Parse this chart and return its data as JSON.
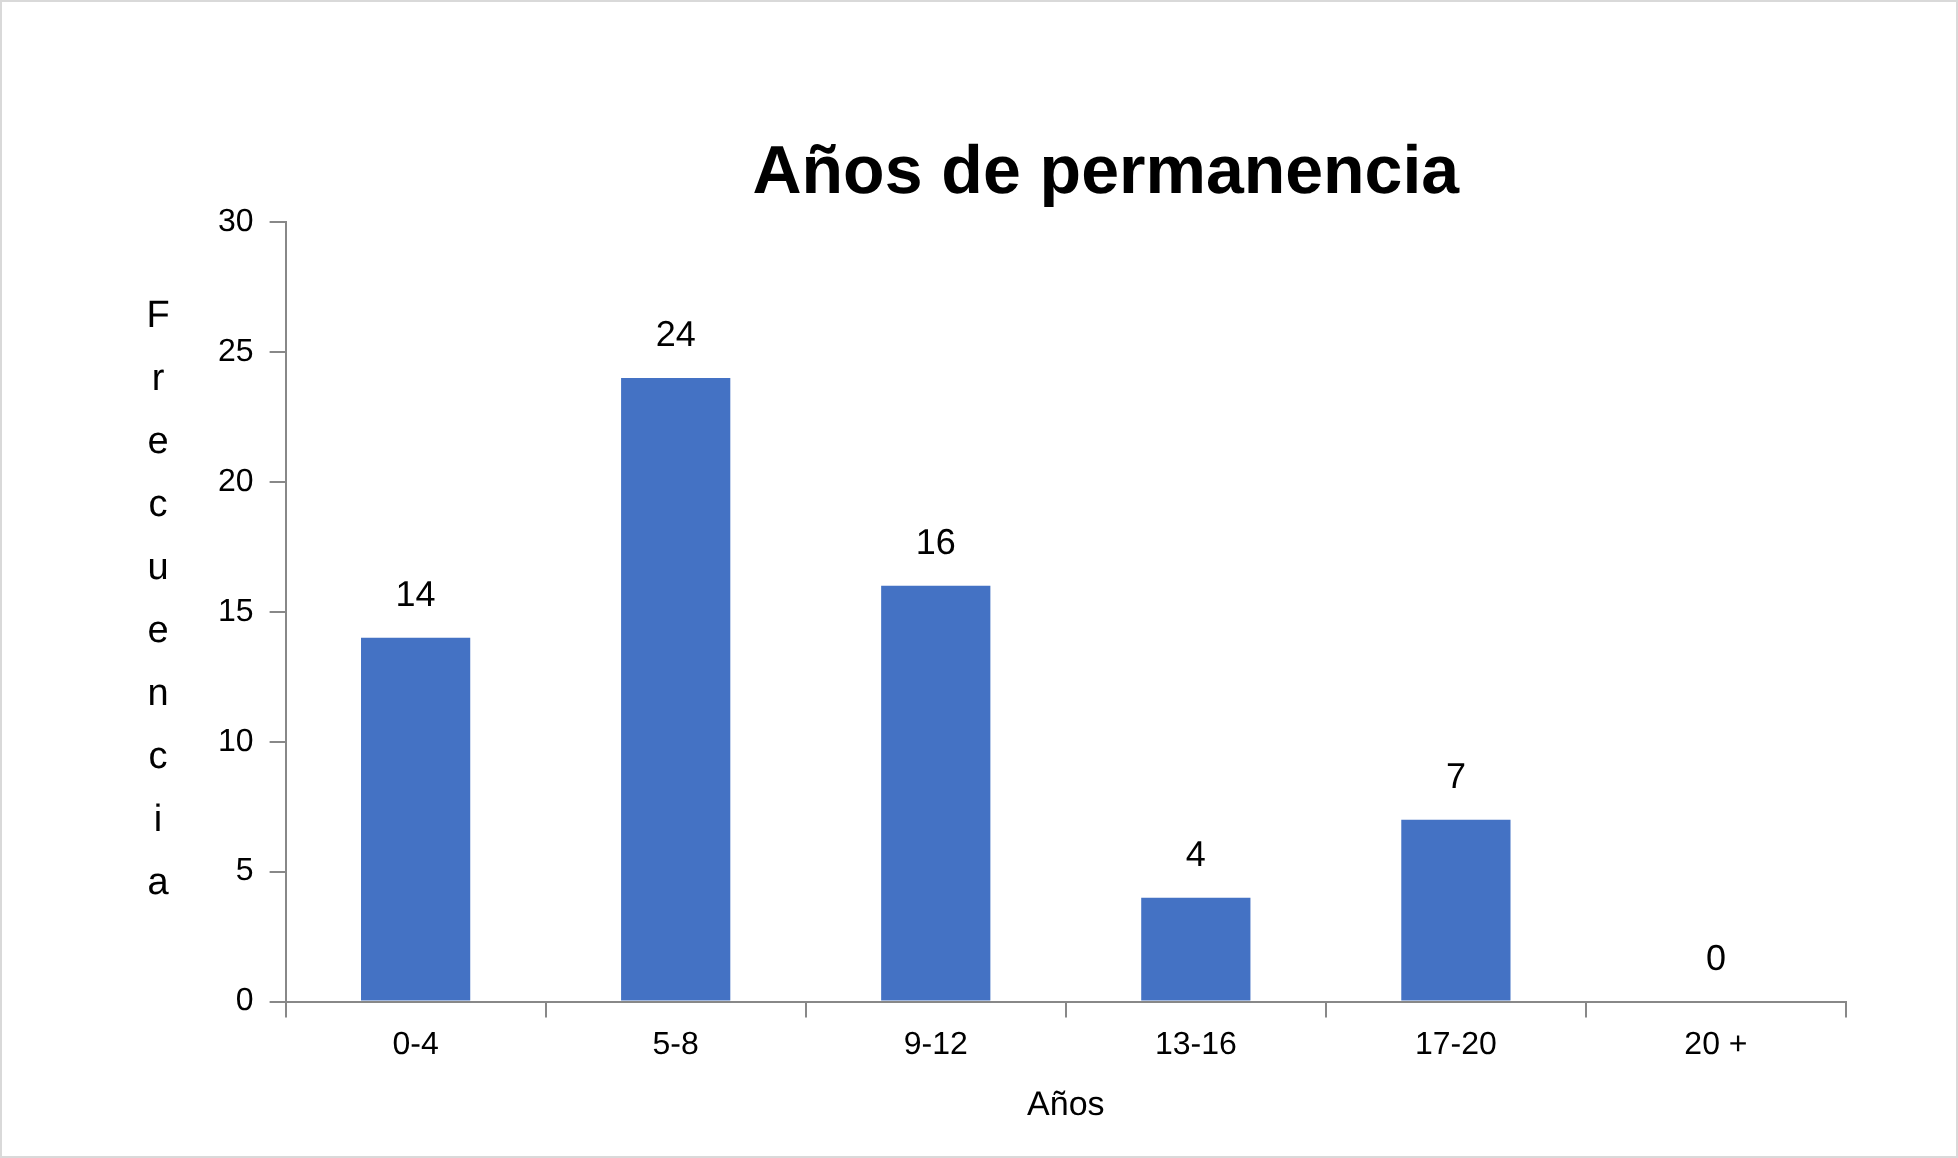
{
  "chart_data": {
    "type": "bar",
    "title": "Años de permanencia",
    "xlabel": "Años",
    "ylabel": "Frecuencia",
    "categories": [
      "0-4",
      "5-8",
      "9-12",
      "13-16",
      "17-20",
      "20 +"
    ],
    "values": [
      14,
      24,
      16,
      4,
      7,
      0
    ],
    "color": "#4472c4",
    "ylim": [
      0,
      30
    ],
    "yticks": [
      0,
      5,
      10,
      15,
      20,
      25,
      30
    ],
    "grid": false,
    "legend": false,
    "data_labels": true
  }
}
